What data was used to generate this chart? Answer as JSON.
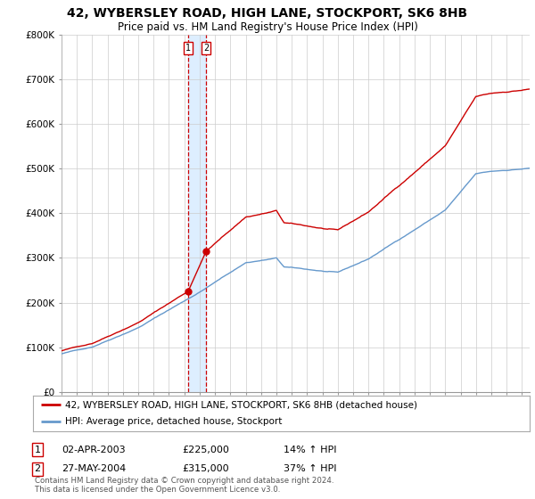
{
  "title": "42, WYBERSLEY ROAD, HIGH LANE, STOCKPORT, SK6 8HB",
  "subtitle": "Price paid vs. HM Land Registry's House Price Index (HPI)",
  "ylabel_ticks": [
    "£0",
    "£100K",
    "£200K",
    "£300K",
    "£400K",
    "£500K",
    "£600K",
    "£700K",
    "£800K"
  ],
  "ytick_values": [
    0,
    100000,
    200000,
    300000,
    400000,
    500000,
    600000,
    700000,
    800000
  ],
  "ylim": [
    0,
    800000
  ],
  "xlim_start": 1995.0,
  "xlim_end": 2025.5,
  "sale1_x": 2003.25,
  "sale1_y": 225000,
  "sale2_x": 2004.42,
  "sale2_y": 315000,
  "sale1_label": "1",
  "sale2_label": "2",
  "red_line_color": "#cc0000",
  "blue_line_color": "#6699cc",
  "dashed_line_color": "#cc0000",
  "band_color": "#ddeeff",
  "legend_label_red": "42, WYBERSLEY ROAD, HIGH LANE, STOCKPORT, SK6 8HB (detached house)",
  "legend_label_blue": "HPI: Average price, detached house, Stockport",
  "table_row1": [
    "1",
    "02-APR-2003",
    "£225,000",
    "14% ↑ HPI"
  ],
  "table_row2": [
    "2",
    "27-MAY-2004",
    "£315,000",
    "37% ↑ HPI"
  ],
  "footer": "Contains HM Land Registry data © Crown copyright and database right 2024.\nThis data is licensed under the Open Government Licence v3.0.",
  "background_color": "#ffffff",
  "grid_color": "#cccccc",
  "title_fontsize": 10,
  "subtitle_fontsize": 8.5,
  "tick_fontsize": 7.5,
  "legend_fontsize": 7.5
}
